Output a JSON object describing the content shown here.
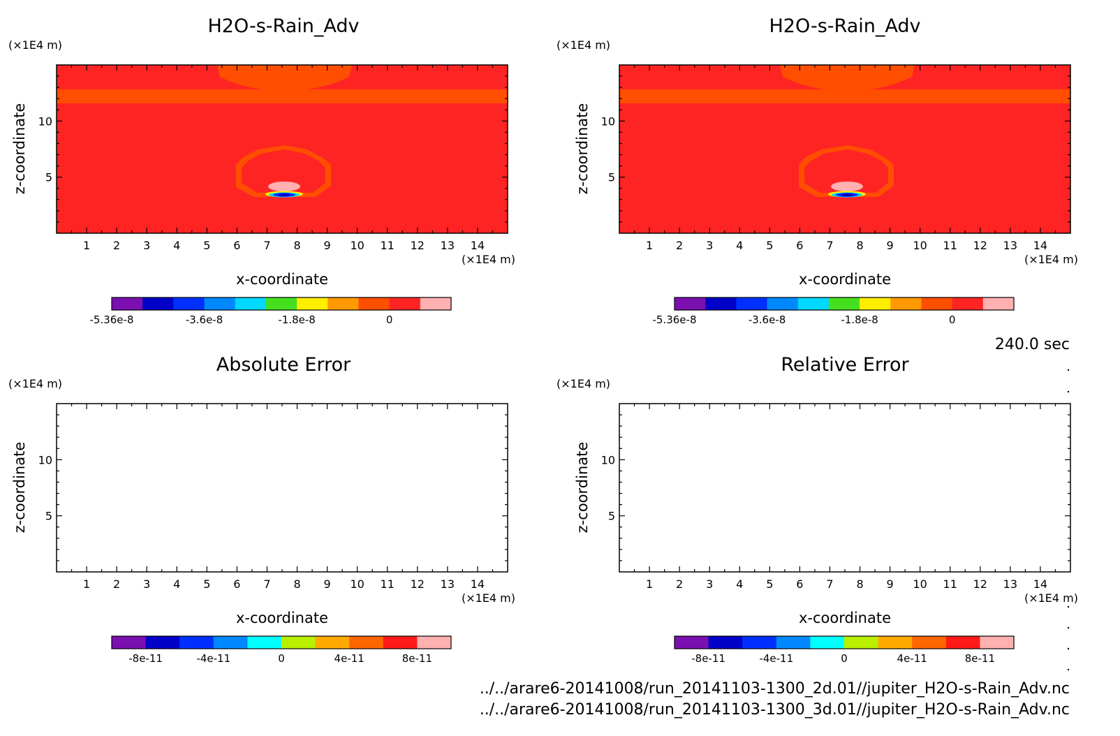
{
  "panels": [
    {
      "title": "H2O-s-Rain_Adv",
      "y_unit": "(×1E4 m)",
      "x_unit": "(×1E4 m)",
      "xlabel": "x-coordinate",
      "ylabel": "z-coordinate",
      "cbar_ticks": [
        "-5.36e-8",
        "-3.6e-8",
        "-1.8e-8",
        "0"
      ]
    },
    {
      "title": "H2O-s-Rain_Adv",
      "y_unit": "(×1E4 m)",
      "x_unit": "(×1E4 m)",
      "xlabel": "x-coordinate",
      "ylabel": "z-coordinate",
      "cbar_ticks": [
        "-5.36e-8",
        "-3.6e-8",
        "-1.8e-8",
        "0"
      ]
    },
    {
      "title": "Absolute Error",
      "y_unit": "(×1E4 m)",
      "x_unit": "(×1E4 m)",
      "xlabel": "x-coordinate",
      "ylabel": "z-coordinate",
      "cbar_ticks": [
        "-8e-11",
        "-4e-11",
        "0",
        "4e-11",
        "8e-11"
      ]
    },
    {
      "title": "Relative Error",
      "y_unit": "(×1E4 m)",
      "x_unit": "(×1E4 m)",
      "xlabel": "x-coordinate",
      "ylabel": "z-coordinate",
      "cbar_ticks": [
        "-8e-11",
        "-4e-11",
        "0",
        "4e-11",
        "8e-11"
      ]
    }
  ],
  "time_label": "240.0 sec",
  "files": [
    "../../arare6-20141008/run_20141103-1300_2d.01//jupiter_H2O-s-Rain_Adv.nc",
    "../../arare6-20141008/run_20141103-1300_3d.01//jupiter_H2O-s-Rain_Adv.nc"
  ],
  "chart_data": [
    {
      "type": "heatmap",
      "title": "H2O-s-Rain_Adv",
      "xlabel": "x-coordinate",
      "ylabel": "z-coordinate",
      "x_unit": "(×1E4 m)",
      "y_unit": "(×1E4 m)",
      "xlim": [
        0,
        15
      ],
      "ylim": [
        0,
        15
      ],
      "xticks": [
        "1",
        "2",
        "3",
        "4",
        "5",
        "6",
        "7",
        "8",
        "9",
        "10",
        "11",
        "12",
        "13",
        "14"
      ],
      "yticks": [
        "5",
        "10"
      ],
      "colorbar": {
        "colors": [
          "#7b10b0",
          "#0000c8",
          "#0030ff",
          "#0088ff",
          "#00d8ff",
          "#44e020",
          "#ffee00",
          "#ff9900",
          "#ff4e00",
          "#ff2424",
          "#ffb0b0"
        ],
        "ticks": [
          "-5.36e-8",
          "-3.6e-8",
          "-1.8e-8",
          "0"
        ]
      }
    },
    {
      "type": "heatmap",
      "title": "H2O-s-Rain_Adv",
      "xlabel": "x-coordinate",
      "ylabel": "z-coordinate",
      "x_unit": "(×1E4 m)",
      "y_unit": "(×1E4 m)",
      "xlim": [
        0,
        15
      ],
      "ylim": [
        0,
        15
      ],
      "xticks": [
        "1",
        "2",
        "3",
        "4",
        "5",
        "6",
        "7",
        "8",
        "9",
        "10",
        "11",
        "12",
        "13",
        "14"
      ],
      "yticks": [
        "5",
        "10"
      ],
      "colorbar": {
        "colors": [
          "#7b10b0",
          "#0000c8",
          "#0030ff",
          "#0088ff",
          "#00d8ff",
          "#44e020",
          "#ffee00",
          "#ff9900",
          "#ff4e00",
          "#ff2424",
          "#ffb0b0"
        ],
        "ticks": [
          "-5.36e-8",
          "-3.6e-8",
          "-1.8e-8",
          "0"
        ]
      }
    },
    {
      "type": "heatmap",
      "title": "Absolute Error",
      "xlabel": "x-coordinate",
      "ylabel": "z-coordinate",
      "x_unit": "(×1E4 m)",
      "y_unit": "(×1E4 m)",
      "xlim": [
        0,
        15
      ],
      "ylim": [
        0,
        15
      ],
      "xticks": [
        "1",
        "2",
        "3",
        "4",
        "5",
        "6",
        "7",
        "8",
        "9",
        "10",
        "11",
        "12",
        "13",
        "14"
      ],
      "yticks": [
        "5",
        "10"
      ],
      "colorbar": {
        "colors": [
          "#7b10b0",
          "#0000c8",
          "#0030ff",
          "#0088ff",
          "#00ffff",
          "#b8f000",
          "#ffaa00",
          "#ff6600",
          "#ff1a1a",
          "#ffb0b0"
        ],
        "ticks": [
          "-8e-11",
          "-4e-11",
          "0",
          "4e-11",
          "8e-11"
        ]
      }
    },
    {
      "type": "heatmap",
      "title": "Relative Error",
      "xlabel": "x-coordinate",
      "ylabel": "z-coordinate",
      "x_unit": "(×1E4 m)",
      "y_unit": "(×1E4 m)",
      "xlim": [
        0,
        15
      ],
      "ylim": [
        0,
        15
      ],
      "xticks": [
        "1",
        "2",
        "3",
        "4",
        "5",
        "6",
        "7",
        "8",
        "9",
        "10",
        "11",
        "12",
        "13",
        "14"
      ],
      "yticks": [
        "5",
        "10"
      ],
      "colorbar": {
        "colors": [
          "#7b10b0",
          "#0000c8",
          "#0030ff",
          "#0088ff",
          "#00ffff",
          "#b8f000",
          "#ffaa00",
          "#ff6600",
          "#ff1a1a",
          "#ffb0b0"
        ],
        "ticks": [
          "-8e-11",
          "-4e-11",
          "0",
          "4e-11",
          "8e-11"
        ]
      }
    }
  ]
}
